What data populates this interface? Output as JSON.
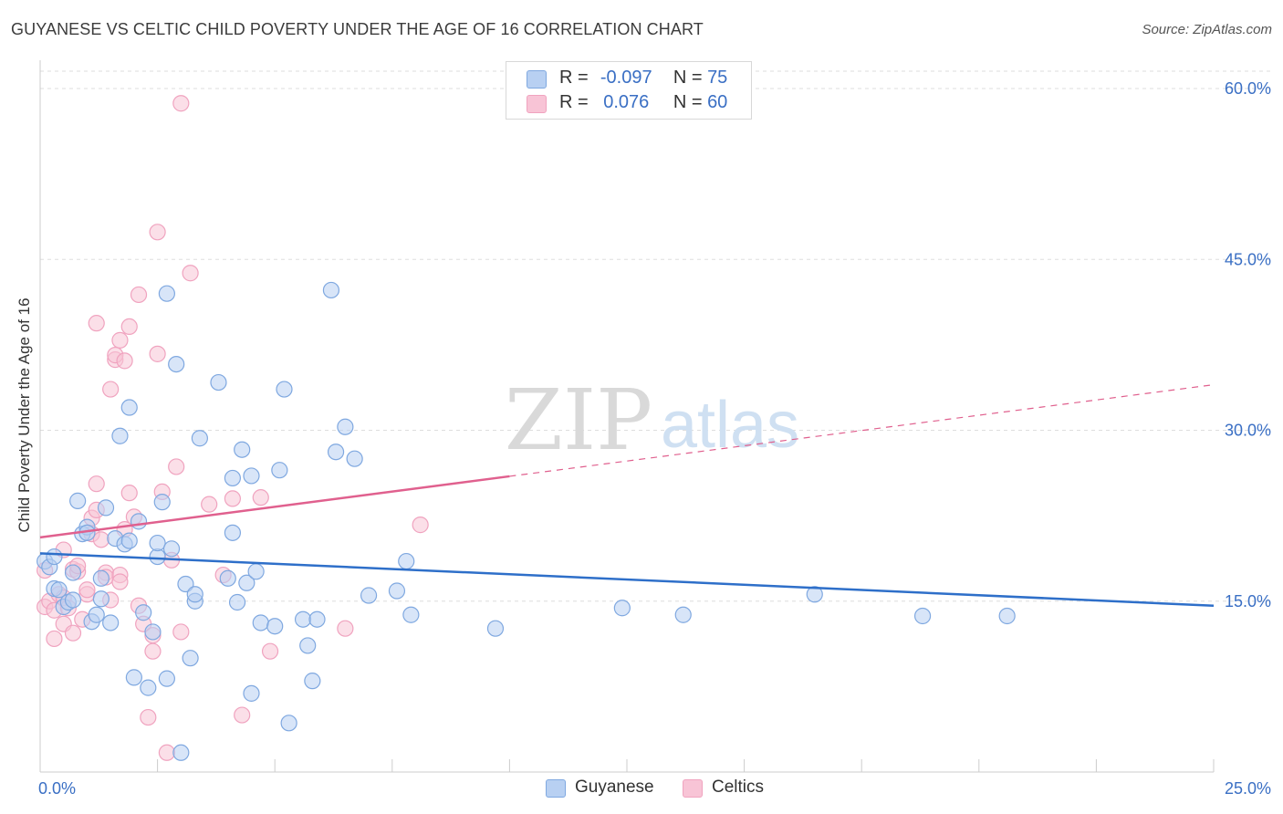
{
  "title": "GUYANESE VS CELTIC CHILD POVERTY UNDER THE AGE OF 16 CORRELATION CHART",
  "source": "Source: ZipAtlas.com",
  "watermark": {
    "zip": "ZIP",
    "atlas": "atlas"
  },
  "legend": {
    "rows": [
      {
        "r_label": "R =",
        "r_value": "-0.097",
        "n_label": "N =",
        "n_value": "75"
      },
      {
        "r_label": "R =",
        "r_value": "0.076",
        "n_label": "N =",
        "n_value": "60"
      }
    ]
  },
  "chart_data": {
    "type": "scatter",
    "title": "GUYANESE VS CELTIC CHILD POVERTY UNDER THE AGE OF 16 CORRELATION CHART",
    "xlabel": "",
    "ylabel": "Child Poverty Under the Age of 16",
    "xlim": [
      0,
      25
    ],
    "ylim": [
      0,
      60
    ],
    "x_tick_labels": [
      "0.0%",
      "25.0%"
    ],
    "y_tick_labels": [
      "15.0%",
      "30.0%",
      "45.0%",
      "60.0%"
    ],
    "y_ticks": [
      15,
      30,
      45,
      60
    ],
    "grid": true,
    "legend_position": "top-center",
    "series": [
      {
        "name": "Guyanese",
        "color": "#7fa8e0",
        "line_color": "#2e6fc9",
        "trend": {
          "x": [
            0,
            25
          ],
          "y": [
            19.2,
            14.6
          ]
        },
        "trend_dashed_from": null,
        "points": [
          [
            0.1,
            18.5
          ],
          [
            0.2,
            18.0
          ],
          [
            0.3,
            16.1
          ],
          [
            0.3,
            18.9
          ],
          [
            0.4,
            16.0
          ],
          [
            0.5,
            14.5
          ],
          [
            0.6,
            14.9
          ],
          [
            0.7,
            15.1
          ],
          [
            0.7,
            17.5
          ],
          [
            0.8,
            23.8
          ],
          [
            0.9,
            20.9
          ],
          [
            1.0,
            21.5
          ],
          [
            1.0,
            21.0
          ],
          [
            1.1,
            13.2
          ],
          [
            1.2,
            13.8
          ],
          [
            1.3,
            15.2
          ],
          [
            1.3,
            17.0
          ],
          [
            1.4,
            23.2
          ],
          [
            1.5,
            13.1
          ],
          [
            1.6,
            20.5
          ],
          [
            1.7,
            29.5
          ],
          [
            1.8,
            20.0
          ],
          [
            1.9,
            20.3
          ],
          [
            1.9,
            32.0
          ],
          [
            2.0,
            8.3
          ],
          [
            2.1,
            22.0
          ],
          [
            2.2,
            14.0
          ],
          [
            2.3,
            7.4
          ],
          [
            2.4,
            12.3
          ],
          [
            2.5,
            18.9
          ],
          [
            2.5,
            20.1
          ],
          [
            2.6,
            23.7
          ],
          [
            2.7,
            42.0
          ],
          [
            2.7,
            8.2
          ],
          [
            2.8,
            19.6
          ],
          [
            2.9,
            35.8
          ],
          [
            3.0,
            1.7
          ],
          [
            3.1,
            16.5
          ],
          [
            3.2,
            10.0
          ],
          [
            3.3,
            15.0
          ],
          [
            3.3,
            15.6
          ],
          [
            3.4,
            29.3
          ],
          [
            3.8,
            34.2
          ],
          [
            4.0,
            17.0
          ],
          [
            4.1,
            21.0
          ],
          [
            4.1,
            25.8
          ],
          [
            4.2,
            14.9
          ],
          [
            4.3,
            28.3
          ],
          [
            4.4,
            16.6
          ],
          [
            4.5,
            26.0
          ],
          [
            4.5,
            6.9
          ],
          [
            4.6,
            17.6
          ],
          [
            4.7,
            13.1
          ],
          [
            5.0,
            12.8
          ],
          [
            5.1,
            26.5
          ],
          [
            5.2,
            33.6
          ],
          [
            5.3,
            4.3
          ],
          [
            5.6,
            13.4
          ],
          [
            5.7,
            11.1
          ],
          [
            5.8,
            8.0
          ],
          [
            5.9,
            13.4
          ],
          [
            6.2,
            42.3
          ],
          [
            6.3,
            28.1
          ],
          [
            6.5,
            30.3
          ],
          [
            6.7,
            27.5
          ],
          [
            7.0,
            15.5
          ],
          [
            7.6,
            15.9
          ],
          [
            7.9,
            13.8
          ],
          [
            7.8,
            18.5
          ],
          [
            9.7,
            12.6
          ],
          [
            12.4,
            14.4
          ],
          [
            13.7,
            13.8
          ],
          [
            16.5,
            15.6
          ],
          [
            18.8,
            13.7
          ],
          [
            20.6,
            13.7
          ]
        ]
      },
      {
        "name": "Celtics",
        "color": "#f0a3bf",
        "line_color": "#e0608e",
        "trend": {
          "x": [
            0,
            25
          ],
          "y": [
            20.6,
            34.0
          ]
        },
        "trend_dashed_from": 10.0,
        "points": [
          [
            0.1,
            17.7
          ],
          [
            0.1,
            14.5
          ],
          [
            0.2,
            15.0
          ],
          [
            0.3,
            14.2
          ],
          [
            0.3,
            11.7
          ],
          [
            0.4,
            15.6
          ],
          [
            0.5,
            13.0
          ],
          [
            0.5,
            15.3
          ],
          [
            0.6,
            14.4
          ],
          [
            0.7,
            17.8
          ],
          [
            0.7,
            12.2
          ],
          [
            0.8,
            17.6
          ],
          [
            0.8,
            18.1
          ],
          [
            0.9,
            13.4
          ],
          [
            1.0,
            15.6
          ],
          [
            1.0,
            16.0
          ],
          [
            1.1,
            22.3
          ],
          [
            1.1,
            20.9
          ],
          [
            1.2,
            25.3
          ],
          [
            1.2,
            23.0
          ],
          [
            1.2,
            39.4
          ],
          [
            1.3,
            20.4
          ],
          [
            1.4,
            17.5
          ],
          [
            1.4,
            17.1
          ],
          [
            1.5,
            33.6
          ],
          [
            1.5,
            15.1
          ],
          [
            1.6,
            36.2
          ],
          [
            1.6,
            36.6
          ],
          [
            1.7,
            17.3
          ],
          [
            1.7,
            16.7
          ],
          [
            1.7,
            37.9
          ],
          [
            1.8,
            21.3
          ],
          [
            1.8,
            36.1
          ],
          [
            1.9,
            24.5
          ],
          [
            1.9,
            39.1
          ],
          [
            2.0,
            22.4
          ],
          [
            2.1,
            41.9
          ],
          [
            2.1,
            14.6
          ],
          [
            2.2,
            13.0
          ],
          [
            2.3,
            4.8
          ],
          [
            2.4,
            12.0
          ],
          [
            2.4,
            10.6
          ],
          [
            2.5,
            36.7
          ],
          [
            2.5,
            47.4
          ],
          [
            2.6,
            24.6
          ],
          [
            2.7,
            1.7
          ],
          [
            2.8,
            18.6
          ],
          [
            2.9,
            26.8
          ],
          [
            3.0,
            12.3
          ],
          [
            3.0,
            58.7
          ],
          [
            3.2,
            43.8
          ],
          [
            3.6,
            23.5
          ],
          [
            3.9,
            17.3
          ],
          [
            4.1,
            24.0
          ],
          [
            4.3,
            5.0
          ],
          [
            4.7,
            24.1
          ],
          [
            4.9,
            10.6
          ],
          [
            6.5,
            12.6
          ],
          [
            8.1,
            21.7
          ],
          [
            0.5,
            19.5
          ]
        ]
      }
    ]
  },
  "bottom_legend": [
    {
      "name": "Guyanese",
      "color": "#b8d0f2"
    },
    {
      "name": "Celtics",
      "color": "#f8c4d6"
    }
  ],
  "colors": {
    "blue_fill": "#b8d0f2",
    "blue_stroke": "#7fa8e0",
    "pink_fill": "#f8c4d6",
    "pink_stroke": "#f0a3bf",
    "axis_text": "#3a6fc4",
    "grid": "#dddddd"
  }
}
